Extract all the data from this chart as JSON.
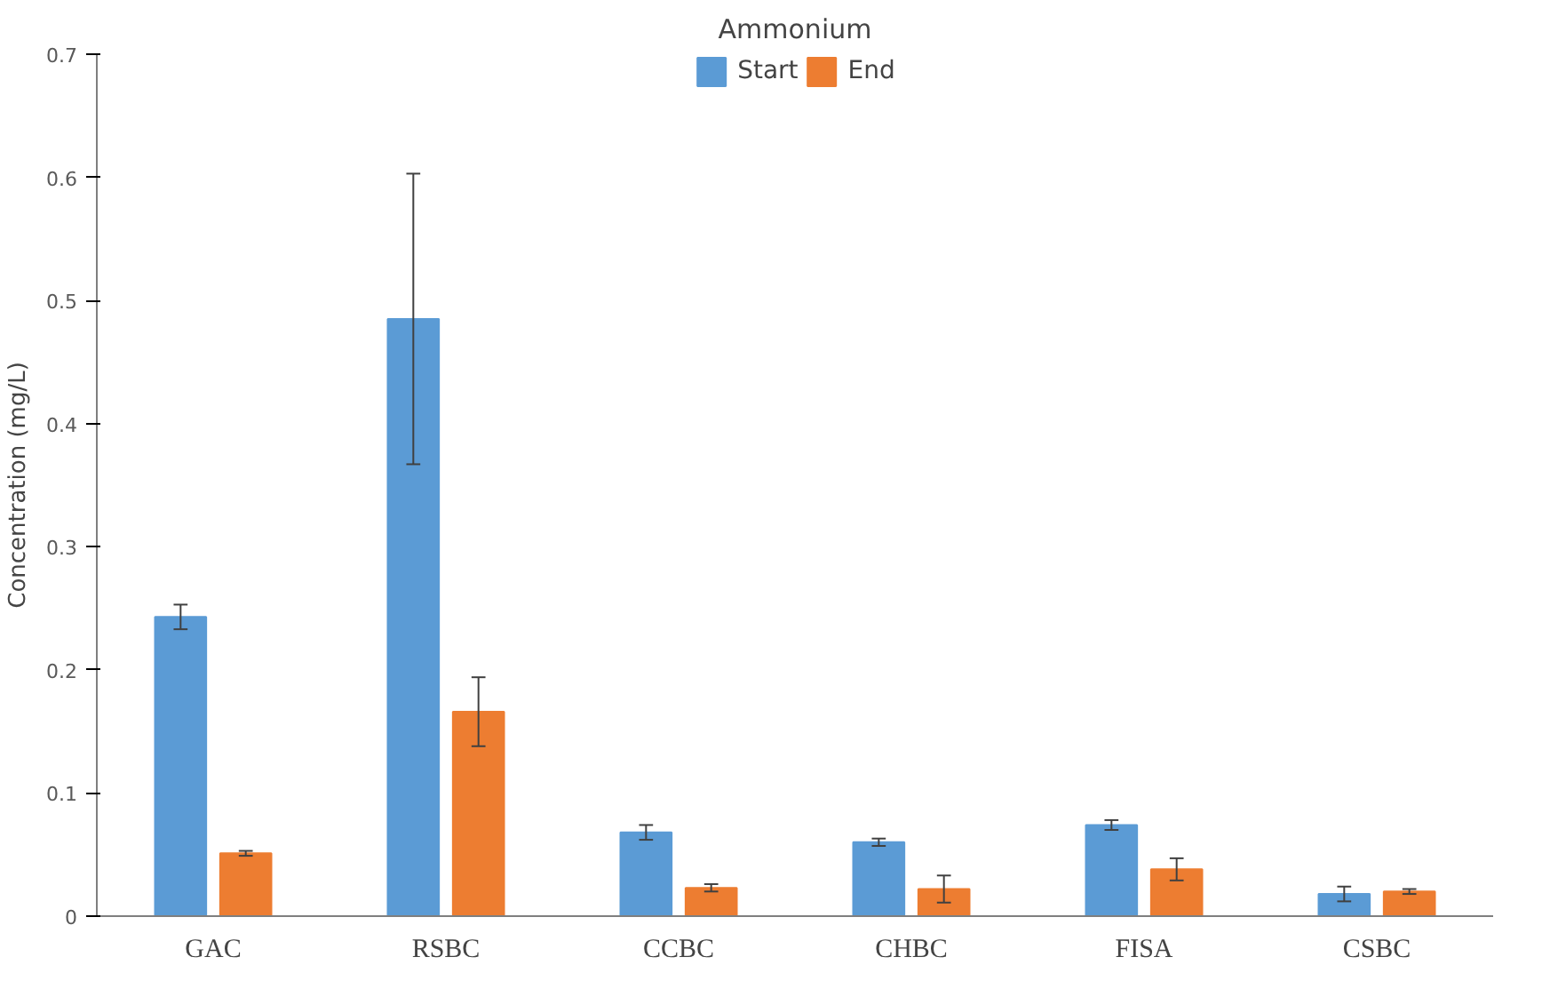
{
  "chart_data": {
    "type": "bar",
    "title": "Ammonium",
    "ylabel": "Concentration (mg/L)",
    "categories": [
      "GAC",
      "RSBC",
      "CCBC",
      "CHBC",
      "FISA",
      "CSBC"
    ],
    "series": [
      {
        "name": "Start",
        "color": "#5b9bd5",
        "values": [
          0.243,
          0.485,
          0.068,
          0.06,
          0.074,
          0.018
        ],
        "errors": [
          0.01,
          0.118,
          0.006,
          0.003,
          0.004,
          0.006
        ]
      },
      {
        "name": "End",
        "color": "#ed7d31",
        "values": [
          0.051,
          0.166,
          0.023,
          0.022,
          0.038,
          0.02
        ],
        "errors": [
          0.002,
          0.028,
          0.003,
          0.011,
          0.009,
          0.002
        ]
      }
    ],
    "ylim": [
      0,
      0.7
    ],
    "yticks": [
      0,
      0.1,
      0.2,
      0.3,
      0.4,
      0.5,
      0.6,
      0.7
    ],
    "grid": false,
    "legend": "top"
  }
}
